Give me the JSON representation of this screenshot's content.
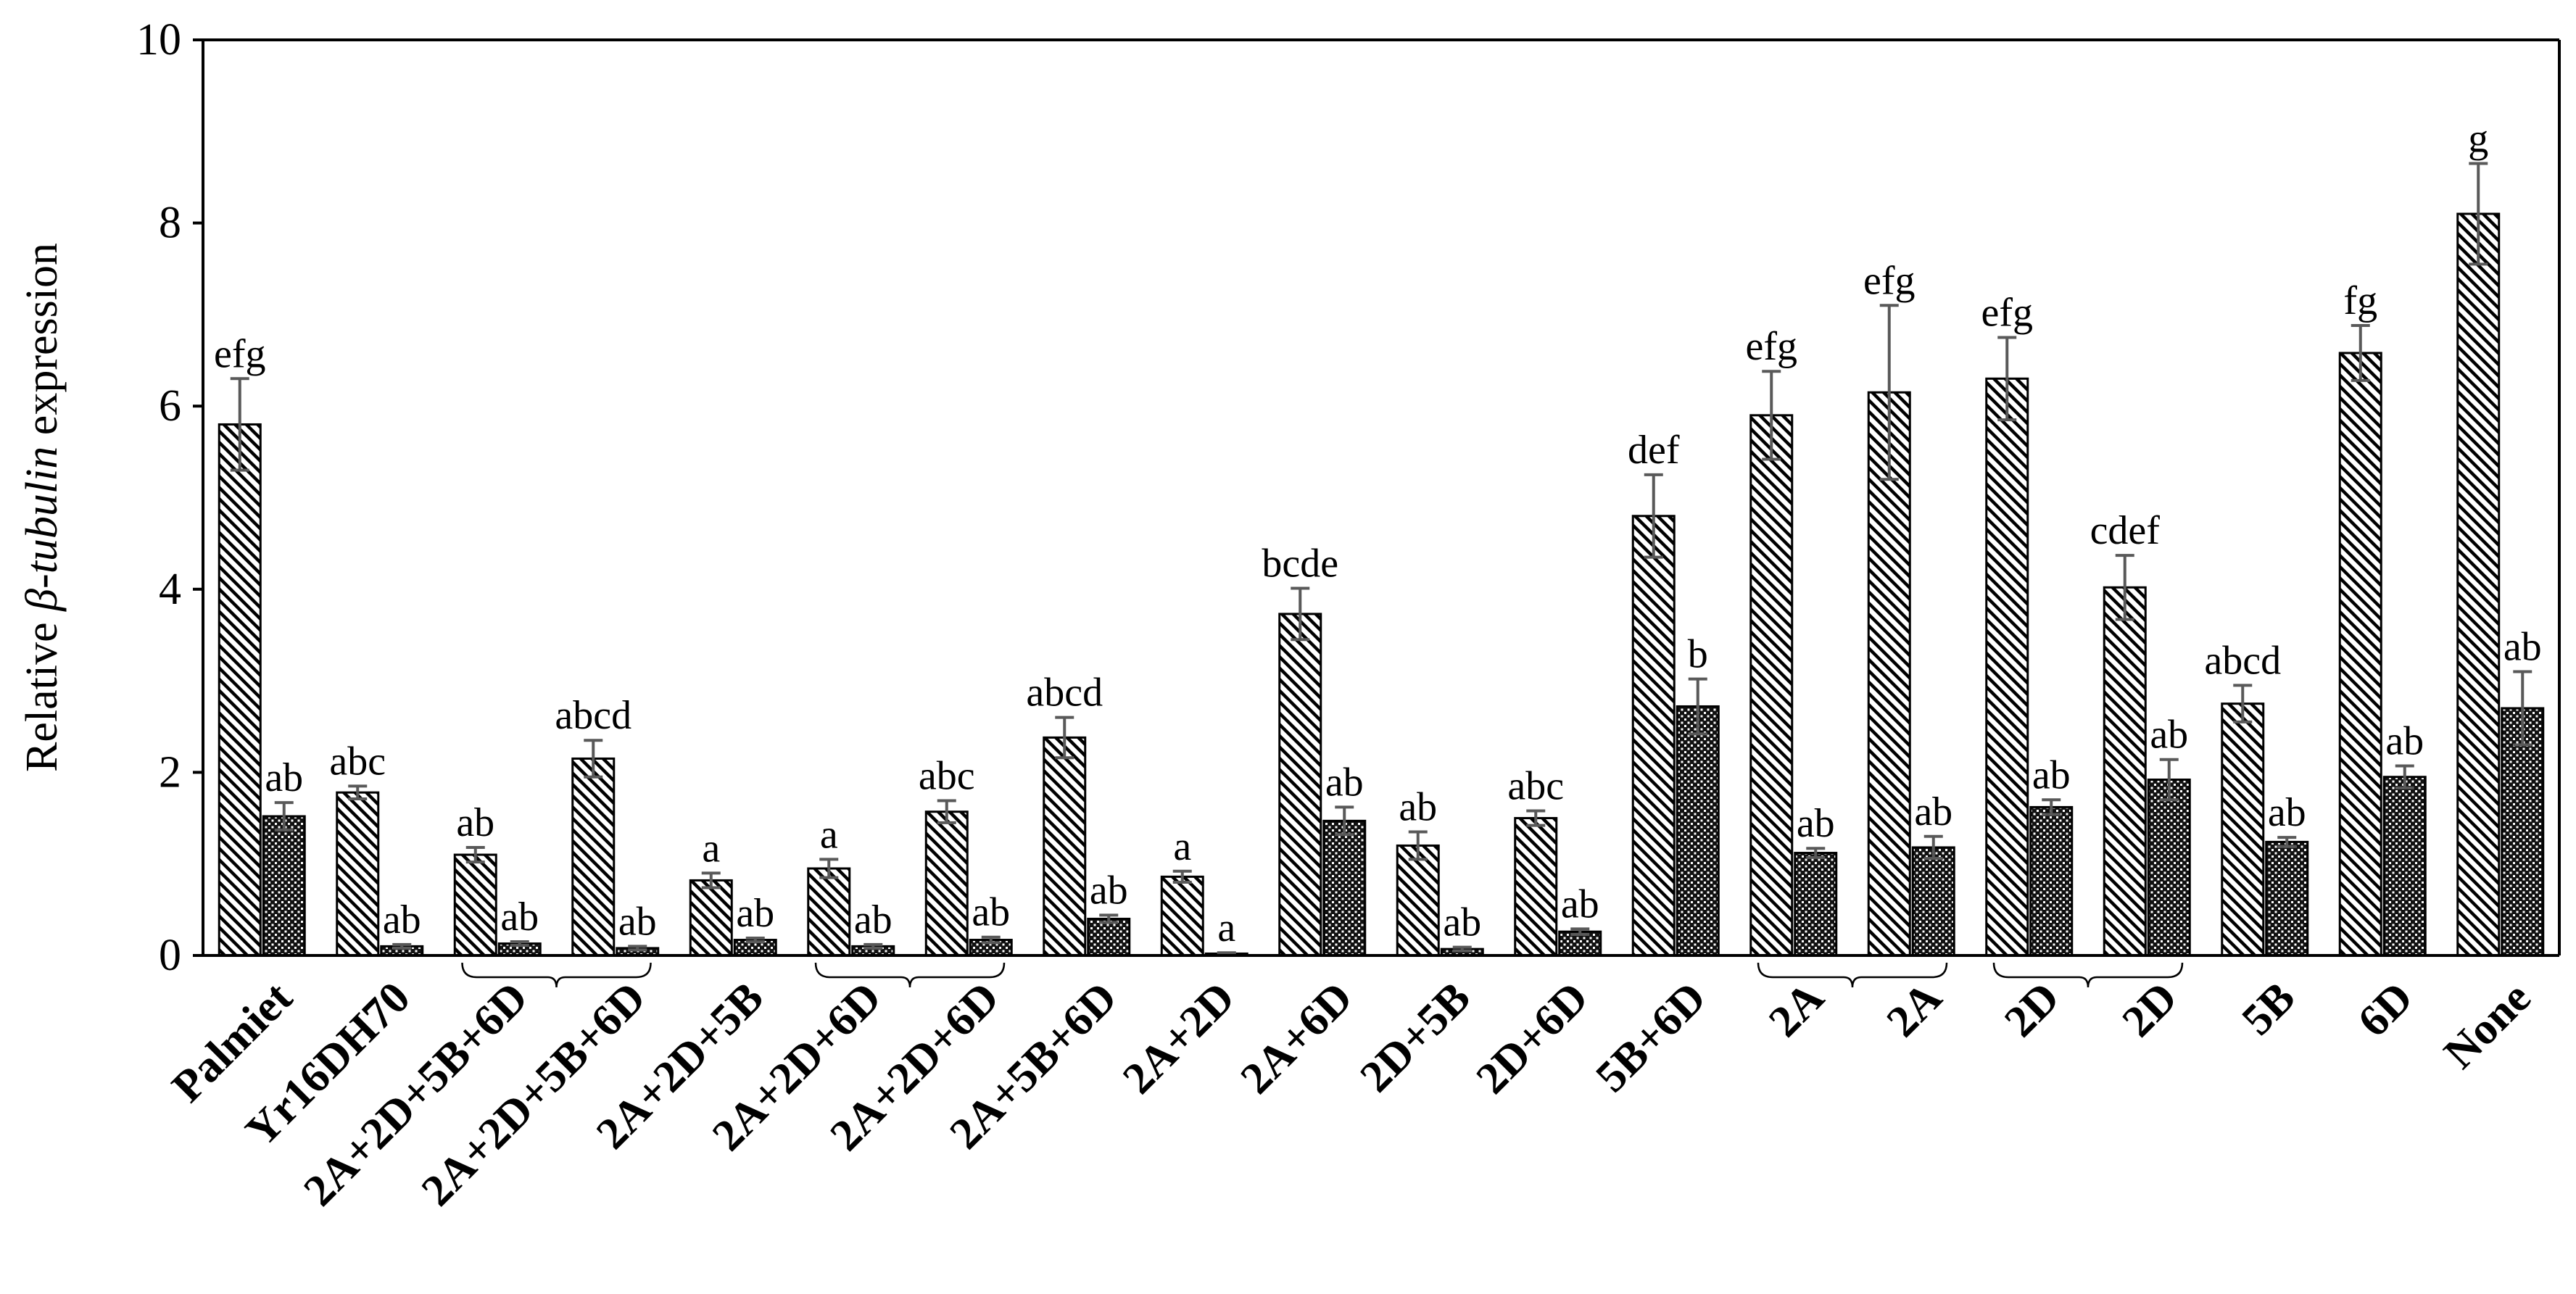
{
  "chart_data": {
    "type": "bar",
    "title": "",
    "xlabel": "",
    "ylabel": {
      "prefix": "Relative ",
      "italic": "β-tubulin",
      "suffix": " expression"
    },
    "ylim": [
      0,
      10
    ],
    "yticks": [
      "0",
      "2",
      "4",
      "6",
      "8",
      "10"
    ],
    "grid": false,
    "legend": "none",
    "categories": [
      "Palmiet",
      "Yr16DH70",
      "2A+2D+5B+6D",
      "2A+2D+5B+6D",
      "2A+2D+5B",
      "2A+2D+6D",
      "2A+2D+6D",
      "2A+5B+6D",
      "2A+2D",
      "2A+6D",
      "2D+5B",
      "2D+6D",
      "5B+6D",
      "2A",
      "2A",
      "2D",
      "2D",
      "5B",
      "6D",
      "None"
    ],
    "series": [
      {
        "pattern": "diagonal-hatch",
        "values": [
          5.8,
          1.78,
          1.1,
          2.15,
          0.82,
          0.95,
          1.57,
          2.38,
          0.86,
          3.73,
          1.2,
          1.5,
          4.8,
          5.9,
          6.15,
          6.3,
          4.02,
          2.75,
          6.58,
          8.1
        ],
        "errors": [
          0.5,
          0.07,
          0.08,
          0.2,
          0.08,
          0.1,
          0.12,
          0.22,
          0.06,
          0.28,
          0.15,
          0.08,
          0.45,
          0.48,
          0.95,
          0.45,
          0.35,
          0.2,
          0.3,
          0.55
        ],
        "labels": [
          "efg",
          "abc",
          "ab",
          "abcd",
          "a",
          "a",
          "abc",
          "abcd",
          "a",
          "bcde",
          "ab",
          "abc",
          "def",
          "efg",
          "efg",
          "efg",
          "cdef",
          "abcd",
          "fg",
          "g"
        ]
      },
      {
        "pattern": "dense-dots",
        "values": [
          1.52,
          0.1,
          0.13,
          0.08,
          0.17,
          0.1,
          0.17,
          0.4,
          0.02,
          1.47,
          0.07,
          0.26,
          2.72,
          1.12,
          1.18,
          1.62,
          1.92,
          1.24,
          1.95,
          2.7
        ],
        "errors": [
          0.15,
          0.02,
          0.02,
          0.02,
          0.02,
          0.02,
          0.03,
          0.04,
          0.01,
          0.15,
          0.02,
          0.03,
          0.3,
          0.05,
          0.12,
          0.08,
          0.22,
          0.05,
          0.12,
          0.4
        ],
        "labels": [
          "ab",
          "ab",
          "ab",
          "ab",
          "ab",
          "ab",
          "ab",
          "ab",
          "a",
          "ab",
          "ab",
          "ab",
          "b",
          "ab",
          "ab",
          "ab",
          "ab",
          "ab",
          "ab",
          "ab"
        ]
      }
    ],
    "brackets": [
      [
        2,
        3
      ],
      [
        5,
        6
      ],
      [
        13,
        14
      ],
      [
        15,
        16
      ]
    ]
  }
}
